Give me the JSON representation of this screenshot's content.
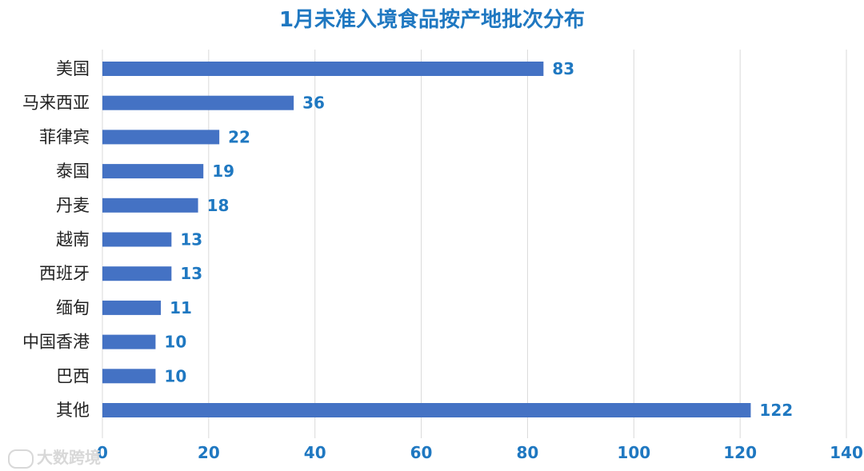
{
  "chart_data": {
    "type": "bar",
    "orientation": "horizontal",
    "title": "1月未准入境食品按产地批次分布",
    "categories": [
      "美国",
      "马来西亚",
      "菲律宾",
      "泰国",
      "丹麦",
      "越南",
      "西班牙",
      "缅甸",
      "中国香港",
      "巴西",
      "其他"
    ],
    "values": [
      83,
      36,
      22,
      19,
      18,
      13,
      13,
      11,
      10,
      10,
      122
    ],
    "xlim": [
      0,
      140
    ],
    "xticks": [
      0,
      20,
      40,
      60,
      80,
      100,
      120,
      140
    ],
    "grid": true,
    "colors": {
      "bar": "#4472c4",
      "labels": "#1f78c1",
      "grid": "#d9d9d9"
    }
  },
  "watermark": {
    "text": "大数跨境",
    "icon": "logo-icon"
  }
}
